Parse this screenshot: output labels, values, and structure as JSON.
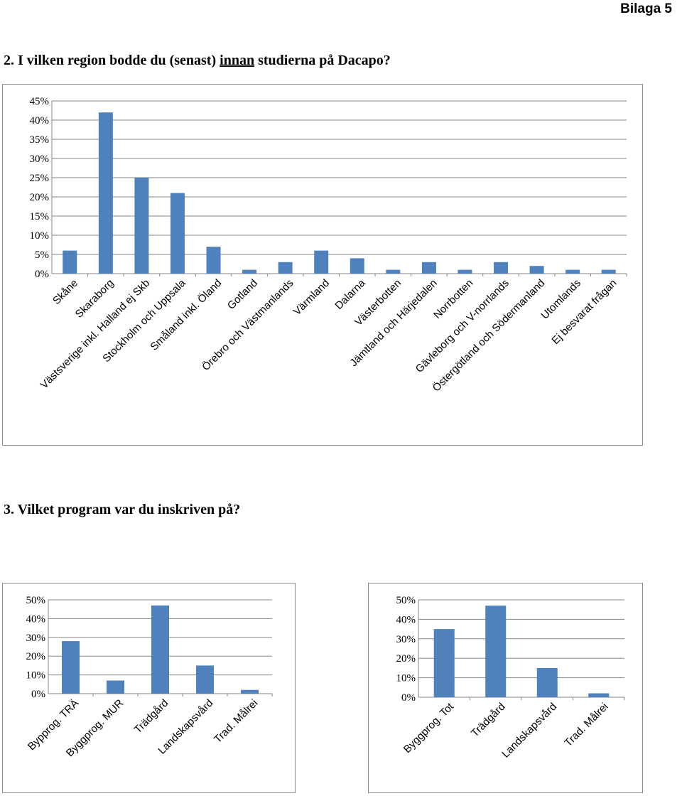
{
  "header": {
    "label": "Bilaga 5"
  },
  "question2": {
    "prefix": "2. I vilken region bodde du (senast) ",
    "underlined": "innan",
    "suffix": " studierna på Dacapo?"
  },
  "question3": {
    "text": "3. Vilket program var du inskriven på?"
  },
  "colors": {
    "bar": "#4f81bd",
    "grid": "#868686",
    "frame": "#8c8c8c"
  },
  "chart_data": [
    {
      "type": "bar",
      "title": "",
      "xlabel": "",
      "ylabel": "",
      "ylim": [
        0,
        45
      ],
      "yticks": [
        0,
        5,
        10,
        15,
        20,
        25,
        30,
        35,
        40,
        45
      ],
      "grid": true,
      "categories": [
        "Skåne",
        "Skaraborg",
        "Västsverige inkl. Halland ej Skb",
        "Stockholm och Uppsala",
        "Småland inkl. Öland",
        "Gotland",
        "Örebro och Västmanlands",
        "Värmland",
        "Dalarna",
        "Västerbotten",
        "Jämtland och Härjedalen",
        "Norrbotten",
        "Gävleborg och V-norrlands",
        "Östergötland och Södermanland",
        "Utomlands",
        "Ej besvarat frågan"
      ],
      "values": [
        6,
        42,
        25,
        21,
        7,
        1,
        3,
        6,
        4,
        1,
        3,
        1,
        3,
        2,
        1,
        1
      ]
    },
    {
      "type": "bar",
      "title": "",
      "xlabel": "",
      "ylabel": "",
      "ylim": [
        0,
        50
      ],
      "yticks": [
        0,
        10,
        20,
        30,
        40,
        50
      ],
      "grid": true,
      "categories": [
        "Bypprog. TRÄ",
        "Byggprog. MUR",
        "Trädgård",
        "Landskapsvård",
        "Trad. Målrei"
      ],
      "values": [
        28,
        7,
        47,
        15,
        2
      ]
    },
    {
      "type": "bar",
      "title": "",
      "xlabel": "",
      "ylabel": "",
      "ylim": [
        0,
        50
      ],
      "yticks": [
        0,
        10,
        20,
        30,
        40,
        50
      ],
      "grid": true,
      "categories": [
        "Byggprog. Tot",
        "Trädgård",
        "Landskapsvård",
        "Trad. Målrei"
      ],
      "values": [
        35,
        47,
        15,
        2
      ]
    }
  ]
}
